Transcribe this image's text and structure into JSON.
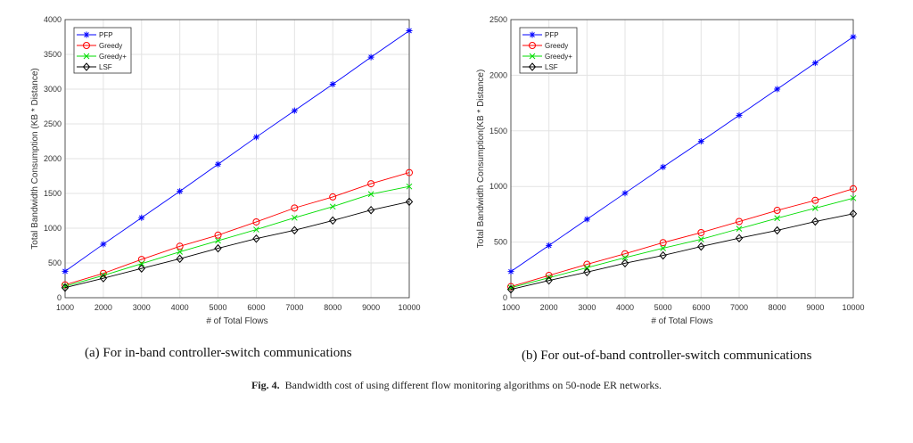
{
  "chart_data": [
    {
      "type": "line",
      "xlabel": "# of Total Flows",
      "ylabel": "Total Bandwidth Consumption (KB * Distance)",
      "x": [
        1000,
        2000,
        3000,
        4000,
        5000,
        6000,
        7000,
        8000,
        9000,
        10000
      ],
      "xlim": [
        1000,
        10000
      ],
      "ylim": [
        0,
        4000
      ],
      "yticks": [
        0,
        500,
        1000,
        1500,
        2000,
        2500,
        3000,
        3500,
        4000
      ],
      "grid": true,
      "legend_position": "top-left",
      "series": [
        {
          "name": "PFP",
          "color": "#0000ff",
          "marker": "asterisk",
          "values": [
            380,
            770,
            1150,
            1530,
            1920,
            2310,
            2690,
            3070,
            3460,
            3840
          ]
        },
        {
          "name": "Greedy",
          "color": "#ff0000",
          "marker": "circle",
          "values": [
            185,
            350,
            550,
            740,
            900,
            1090,
            1290,
            1450,
            1640,
            1800
          ]
        },
        {
          "name": "Greedy+",
          "color": "#00dd00",
          "marker": "x",
          "values": [
            165,
            320,
            490,
            660,
            820,
            980,
            1150,
            1310,
            1490,
            1600
          ]
        },
        {
          "name": "LSF",
          "color": "#000000",
          "marker": "diamond",
          "values": [
            145,
            280,
            420,
            560,
            710,
            850,
            970,
            1110,
            1260,
            1380
          ]
        }
      ]
    },
    {
      "type": "line",
      "xlabel": "# of Total Flows",
      "ylabel": "Total Bandwidth Consumption(KB * Distance)",
      "x": [
        1000,
        2000,
        3000,
        4000,
        5000,
        6000,
        7000,
        8000,
        9000,
        10000
      ],
      "xlim": [
        1000,
        10000
      ],
      "ylim": [
        0,
        2500
      ],
      "yticks": [
        0,
        500,
        1000,
        1500,
        2000,
        2500
      ],
      "grid": true,
      "legend_position": "top-left",
      "series": [
        {
          "name": "PFP",
          "color": "#0000ff",
          "marker": "asterisk",
          "values": [
            235,
            470,
            705,
            940,
            1175,
            1405,
            1640,
            1875,
            2110,
            2345
          ]
        },
        {
          "name": "Greedy",
          "color": "#ff0000",
          "marker": "circle",
          "values": [
            100,
            200,
            300,
            395,
            495,
            585,
            685,
            785,
            875,
            980
          ]
        },
        {
          "name": "Greedy+",
          "color": "#00dd00",
          "marker": "x",
          "values": [
            90,
            180,
            270,
            360,
            445,
            525,
            620,
            715,
            805,
            895
          ]
        },
        {
          "name": "LSF",
          "color": "#000000",
          "marker": "diamond",
          "values": [
            75,
            155,
            230,
            310,
            380,
            460,
            535,
            605,
            685,
            755
          ]
        }
      ]
    }
  ],
  "captions": {
    "a": "(a)    For in-band controller-switch communications",
    "b": "(b)    For out-of-band controller-switch communications",
    "fig_label": "Fig. 4.",
    "fig_text": "Bandwidth cost of using different flow monitoring algorithms on 50-node ER networks."
  }
}
